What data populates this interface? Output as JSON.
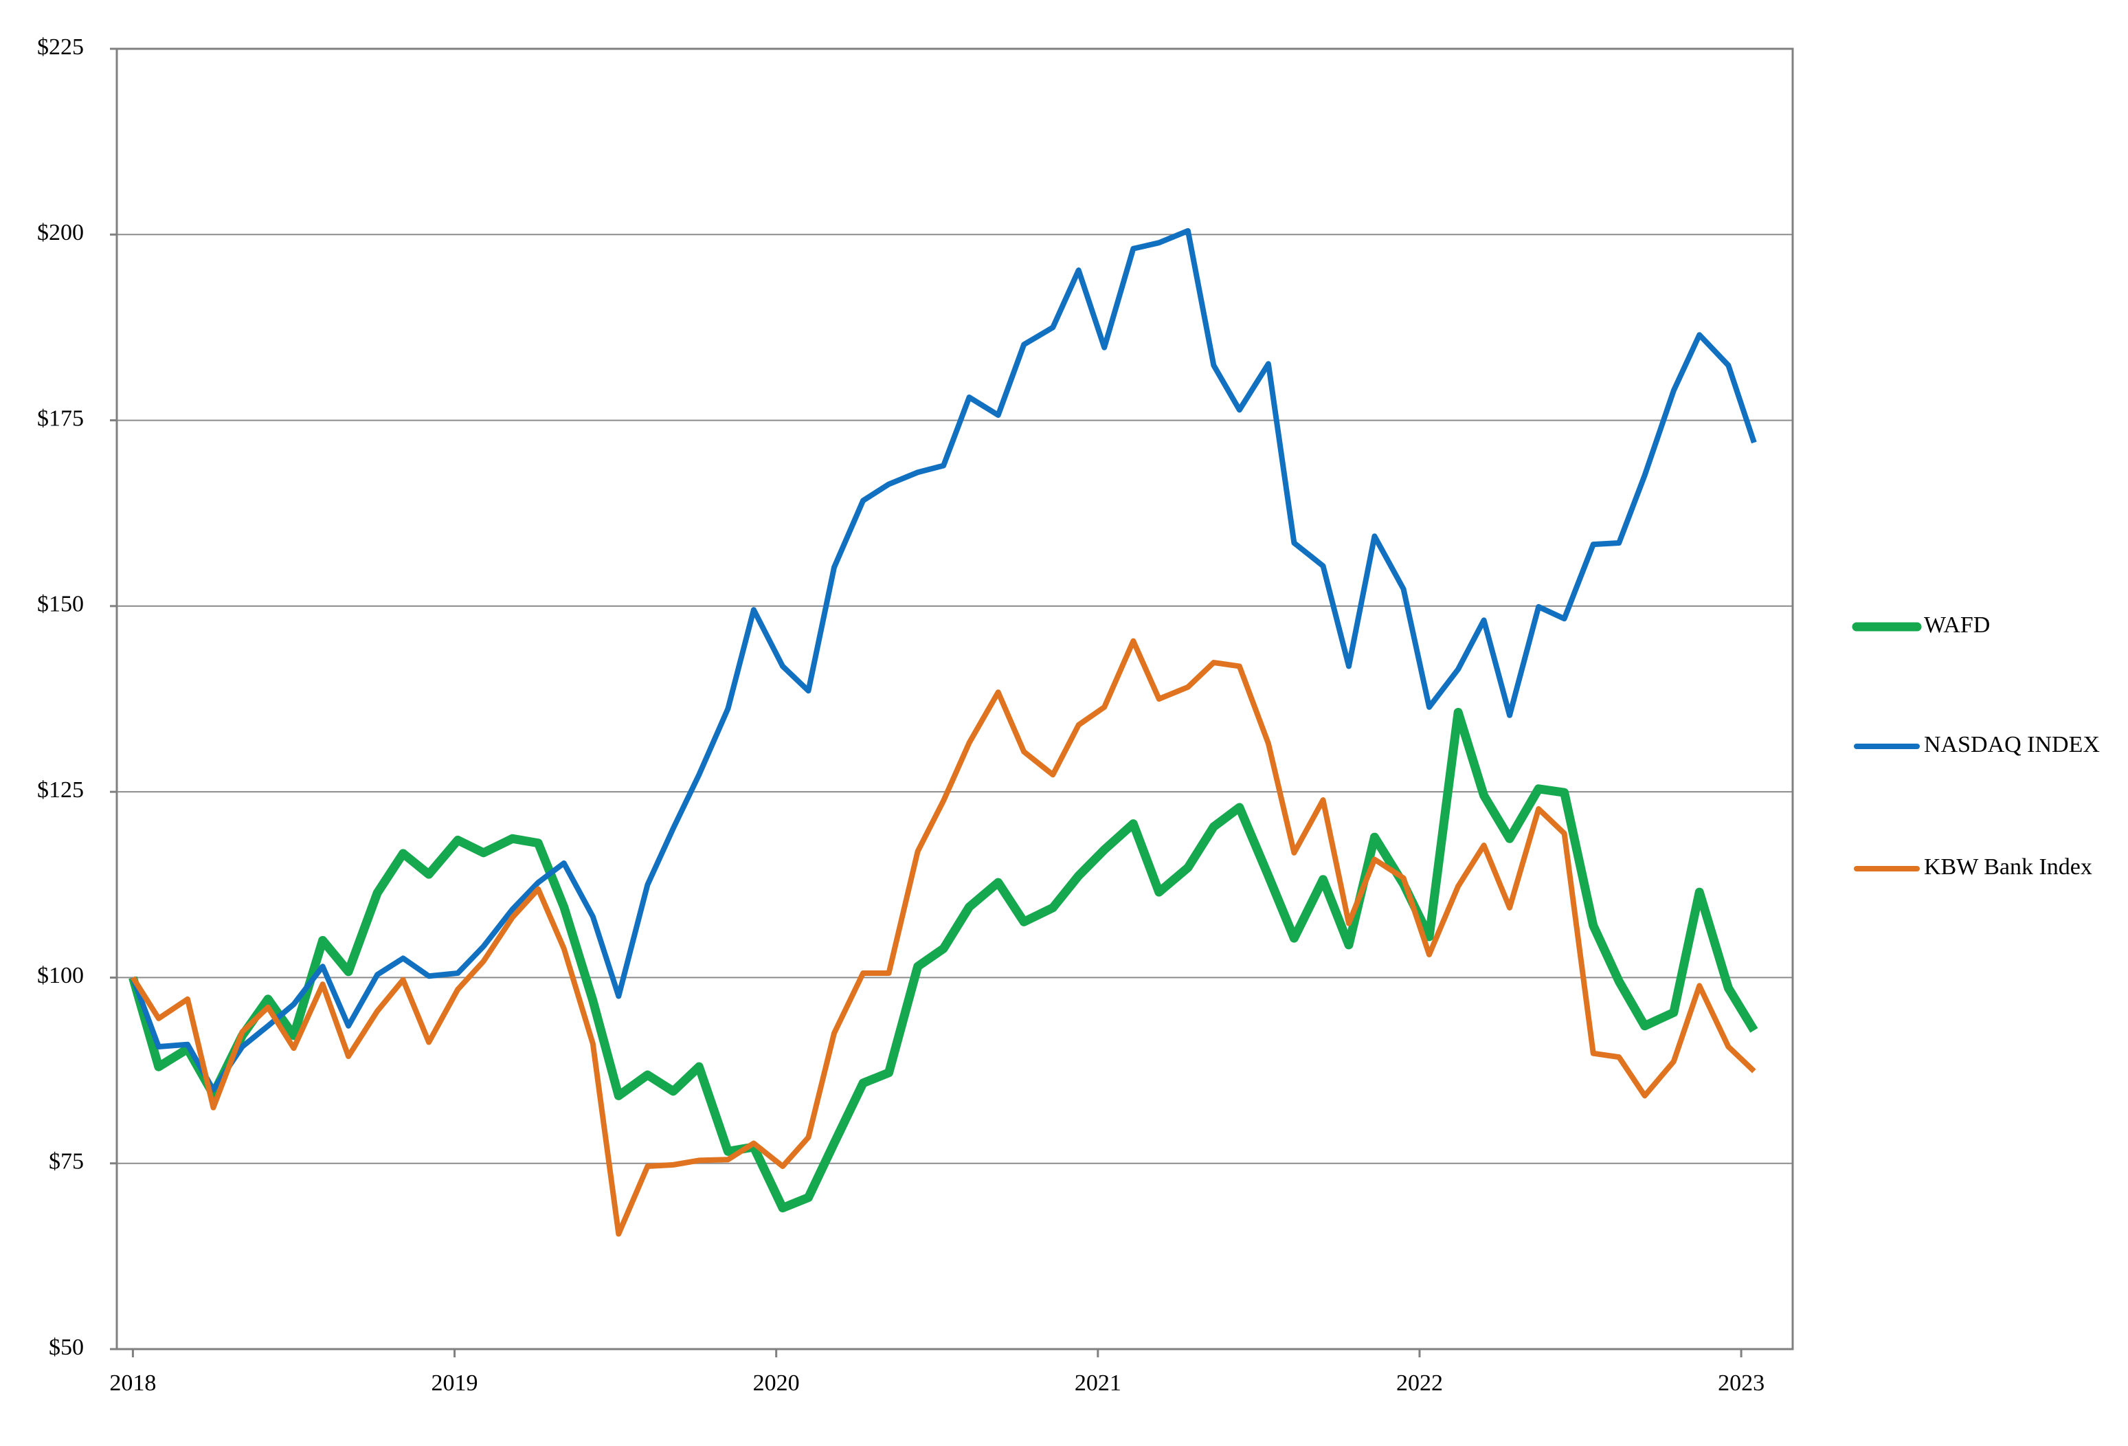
{
  "chart_data": {
    "type": "line",
    "x": [
      2018,
      2018.08,
      2018.17,
      2018.25,
      2018.34,
      2018.42,
      2018.5,
      2018.59,
      2018.67,
      2018.76,
      2018.84,
      2018.92,
      2019.01,
      2019.09,
      2019.18,
      2019.26,
      2019.34,
      2019.43,
      2019.51,
      2019.6,
      2019.68,
      2019.76,
      2019.85,
      2019.93,
      2020.02,
      2020.1,
      2020.18,
      2020.27,
      2020.35,
      2020.44,
      2020.52,
      2020.6,
      2020.69,
      2020.77,
      2020.86,
      2020.94,
      2021.02,
      2021.11,
      2021.19,
      2021.28,
      2021.36,
      2021.44,
      2021.53,
      2021.61,
      2021.7,
      2021.78,
      2021.86,
      2021.95,
      2022.03,
      2022.12,
      2022.2,
      2022.28,
      2022.37,
      2022.45,
      2022.54,
      2022.62,
      2022.7,
      2022.79,
      2022.87,
      2022.96,
      2023.04
    ],
    "series": [
      {
        "name": "WAFD",
        "color": "#16a84e",
        "values": [
          100,
          88,
          90.4,
          84.3,
          92.2,
          97.1,
          92.2,
          105,
          100.8,
          111.4,
          116.7,
          113.9,
          118.5,
          116.8,
          118.7,
          118.1,
          109.5,
          96.9,
          84.1,
          86.9,
          84.7,
          88,
          76.6,
          77.2,
          69,
          70.4,
          77.7,
          85.8,
          87.2,
          101.5,
          103.9,
          109.5,
          112.8,
          107.5,
          109.4,
          113.7,
          117.2,
          120.7,
          111.5,
          114.8,
          120.3,
          122.9,
          113.7,
          105.3,
          113.2,
          104.4,
          118.9,
          112.6,
          105.5,
          135.7,
          124.5,
          118.7,
          125.4,
          124.9,
          107,
          99.5,
          93.5,
          95.3,
          111.5,
          98.6,
          92.9
        ]
      },
      {
        "name": "NASDAQ INDEX",
        "color": "#1170c0",
        "values": [
          100,
          90.7,
          91,
          84.9,
          90.7,
          93.5,
          96.4,
          101.5,
          93.5,
          100.4,
          102.6,
          100.2,
          100.6,
          104.2,
          109.2,
          112.8,
          115.4,
          108.2,
          97.5,
          112.5,
          120.1,
          127.3,
          136.2,
          149.5,
          141.9,
          138.6,
          155.2,
          164.2,
          166.4,
          168,
          168.9,
          178.1,
          175.7,
          185.2,
          187.5,
          195.2,
          184.8,
          198.1,
          198.9,
          200.5,
          182.4,
          176.4,
          182.6,
          158.5,
          155.4,
          141.9,
          159.4,
          152.3,
          136.4,
          141.5,
          148.1,
          135.3,
          149.9,
          148.3,
          158.3,
          158.5,
          167.6,
          179,
          186.5,
          182.4,
          172
        ]
      },
      {
        "name": "KBW Bank Index",
        "color": "#e0731f",
        "values": [
          100,
          94.5,
          97.1,
          82.5,
          92.7,
          96,
          90.5,
          99.1,
          89.4,
          95.5,
          99.7,
          91.3,
          98.4,
          102.2,
          108.1,
          111.9,
          103.9,
          91.1,
          65.5,
          74.6,
          74.8,
          75.4,
          75.5,
          77.7,
          74.6,
          78.5,
          92.5,
          100.6,
          100.6,
          117,
          123.8,
          131.6,
          138.4,
          130.4,
          127.3,
          134,
          136.4,
          145.3,
          137.5,
          139.1,
          142.4,
          141.9,
          131.5,
          116.8,
          123.9,
          107.3,
          115.9,
          113.4,
          103.1,
          112.3,
          117.8,
          109.4,
          122.7,
          119.4,
          89.8,
          89.3,
          84.1,
          88.7,
          98.9,
          90.7,
          87.4
        ]
      }
    ],
    "xlim": [
      2017.95,
      2023.16
    ],
    "xticks": [
      2018,
      2019,
      2020,
      2021,
      2022,
      2023
    ],
    "ylim": [
      50,
      225
    ],
    "yticks": [
      {
        "value": 50,
        "label": "$50"
      },
      {
        "value": 75,
        "label": "$75"
      },
      {
        "value": 100,
        "label": "$100"
      },
      {
        "value": 125,
        "label": "$125"
      },
      {
        "value": 150,
        "label": "$150"
      },
      {
        "value": 175,
        "label": "$175"
      },
      {
        "value": 200,
        "label": "$200"
      },
      {
        "value": 225,
        "label": "$225"
      }
    ],
    "grid": true,
    "legend": "right"
  }
}
